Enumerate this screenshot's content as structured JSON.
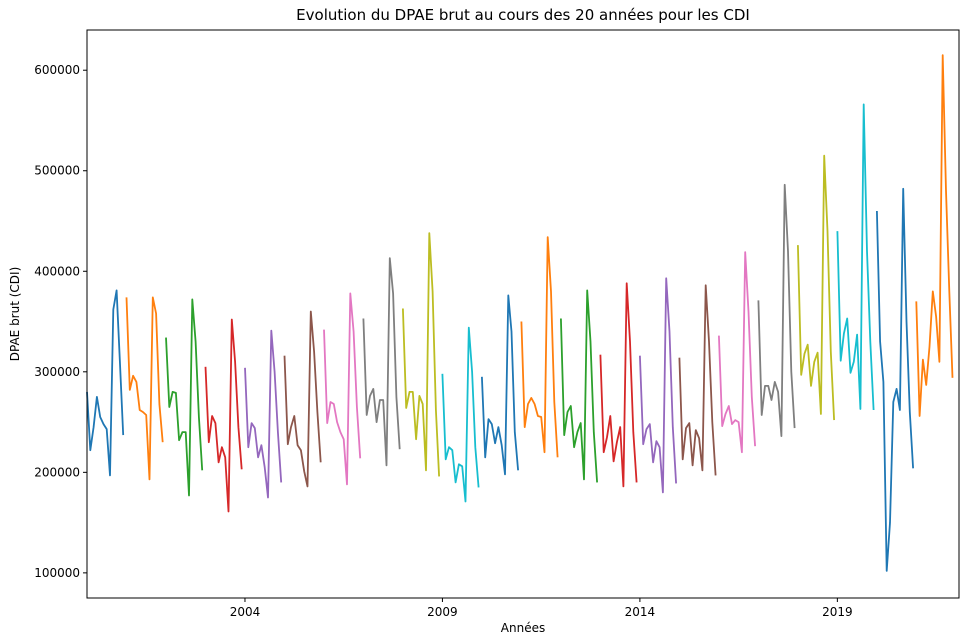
{
  "chart_data": {
    "type": "line",
    "title": "Evolution du DPAE brut au cours des 20 années pour les CDI",
    "xlabel": "Années",
    "ylabel": "DPAE brut (CDI)",
    "xlim": [
      2000.0,
      2022.08
    ],
    "ylim": [
      75000,
      640000
    ],
    "x_ticks": [
      2004,
      2009,
      2014,
      2019
    ],
    "x_tick_labels": [
      "2004",
      "2009",
      "2014",
      "2019"
    ],
    "y_ticks": [
      100000,
      200000,
      300000,
      400000,
      500000,
      600000
    ],
    "y_tick_labels": [
      "100000",
      "200000",
      "300000",
      "400000",
      "500000",
      "600000"
    ],
    "grid": false,
    "legend": "none",
    "colors": [
      "#1f77b4",
      "#ff7f0e",
      "#2ca02c",
      "#d62728",
      "#9467bd",
      "#8c564b",
      "#e377c2",
      "#7f7f7f",
      "#bcbd22",
      "#17becf"
    ],
    "series": [
      {
        "year": 2000,
        "values": [
          280000,
          222000,
          245000,
          275000,
          255000,
          248000,
          243000,
          197000,
          362000,
          381000,
          310000,
          237000
        ]
      },
      {
        "year": 2001,
        "values": [
          374000,
          282000,
          296000,
          290000,
          262000,
          260000,
          257000,
          193000,
          374000,
          358000,
          268000,
          230000
        ]
      },
      {
        "year": 2002,
        "values": [
          334000,
          265000,
          280000,
          279000,
          232000,
          240000,
          240000,
          177000,
          372000,
          330000,
          255000,
          202000
        ]
      },
      {
        "year": 2003,
        "values": [
          305000,
          230000,
          256000,
          249000,
          210000,
          225000,
          215000,
          161000,
          352000,
          310000,
          245000,
          203000
        ]
      },
      {
        "year": 2004,
        "values": [
          304000,
          225000,
          249000,
          244000,
          215000,
          227000,
          205000,
          175000,
          341000,
          300000,
          240000,
          190000
        ]
      },
      {
        "year": 2005,
        "values": [
          316000,
          228000,
          245000,
          256000,
          227000,
          222000,
          201000,
          186000,
          360000,
          320000,
          260000,
          210000
        ]
      },
      {
        "year": 2006,
        "values": [
          342000,
          249000,
          270000,
          268000,
          250000,
          240000,
          233000,
          188000,
          378000,
          340000,
          265000,
          214000
        ]
      },
      {
        "year": 2007,
        "values": [
          353000,
          257000,
          276000,
          283000,
          250000,
          272000,
          272000,
          207000,
          413000,
          378000,
          275000,
          223000
        ]
      },
      {
        "year": 2008,
        "values": [
          363000,
          264000,
          280000,
          280000,
          233000,
          276000,
          268000,
          202000,
          438000,
          380000,
          262000,
          196000
        ]
      },
      {
        "year": 2009,
        "values": [
          298000,
          213000,
          225000,
          222000,
          190000,
          208000,
          206000,
          171000,
          344000,
          300000,
          225000,
          185000
        ]
      },
      {
        "year": 2010,
        "values": [
          295000,
          215000,
          253000,
          248000,
          229000,
          245000,
          227000,
          198000,
          376000,
          340000,
          240000,
          202000
        ]
      },
      {
        "year": 2011,
        "values": [
          350000,
          245000,
          268000,
          274000,
          268000,
          256000,
          255000,
          220000,
          434000,
          380000,
          270000,
          215000
        ]
      },
      {
        "year": 2012,
        "values": [
          353000,
          237000,
          260000,
          266000,
          225000,
          240000,
          249000,
          193000,
          381000,
          330000,
          240000,
          190000
        ]
      },
      {
        "year": 2013,
        "values": [
          317000,
          220000,
          235000,
          256000,
          211000,
          230000,
          245000,
          186000,
          388000,
          330000,
          240000,
          190000
        ]
      },
      {
        "year": 2014,
        "values": [
          316000,
          228000,
          243000,
          248000,
          210000,
          231000,
          225000,
          180000,
          393000,
          340000,
          245000,
          189000
        ]
      },
      {
        "year": 2015,
        "values": [
          314000,
          213000,
          244000,
          249000,
          207000,
          242000,
          234000,
          202000,
          386000,
          330000,
          250000,
          197000
        ]
      },
      {
        "year": 2016,
        "values": [
          336000,
          246000,
          258000,
          266000,
          248000,
          252000,
          250000,
          220000,
          419000,
          360000,
          275000,
          226000
        ]
      },
      {
        "year": 2017,
        "values": [
          371000,
          257000,
          286000,
          286000,
          272000,
          290000,
          280000,
          236000,
          486000,
          420000,
          300000,
          244000
        ]
      },
      {
        "year": 2018,
        "values": [
          426000,
          297000,
          318000,
          327000,
          286000,
          310000,
          319000,
          258000,
          515000,
          440000,
          320000,
          252000
        ]
      },
      {
        "year": 2019,
        "values": [
          440000,
          311000,
          338000,
          353000,
          299000,
          310000,
          337000,
          263000,
          566000,
          420000,
          330000,
          262000
        ]
      },
      {
        "year": 2020,
        "values": [
          460000,
          330000,
          290000,
          102000,
          150000,
          270000,
          283000,
          262000,
          482000,
          350000,
          260000,
          204000
        ]
      },
      {
        "year": 2021,
        "values": [
          370000,
          256000,
          312000,
          287000,
          325000,
          380000,
          355000,
          310000,
          615000,
          480000,
          380000,
          294000
        ]
      }
    ]
  }
}
